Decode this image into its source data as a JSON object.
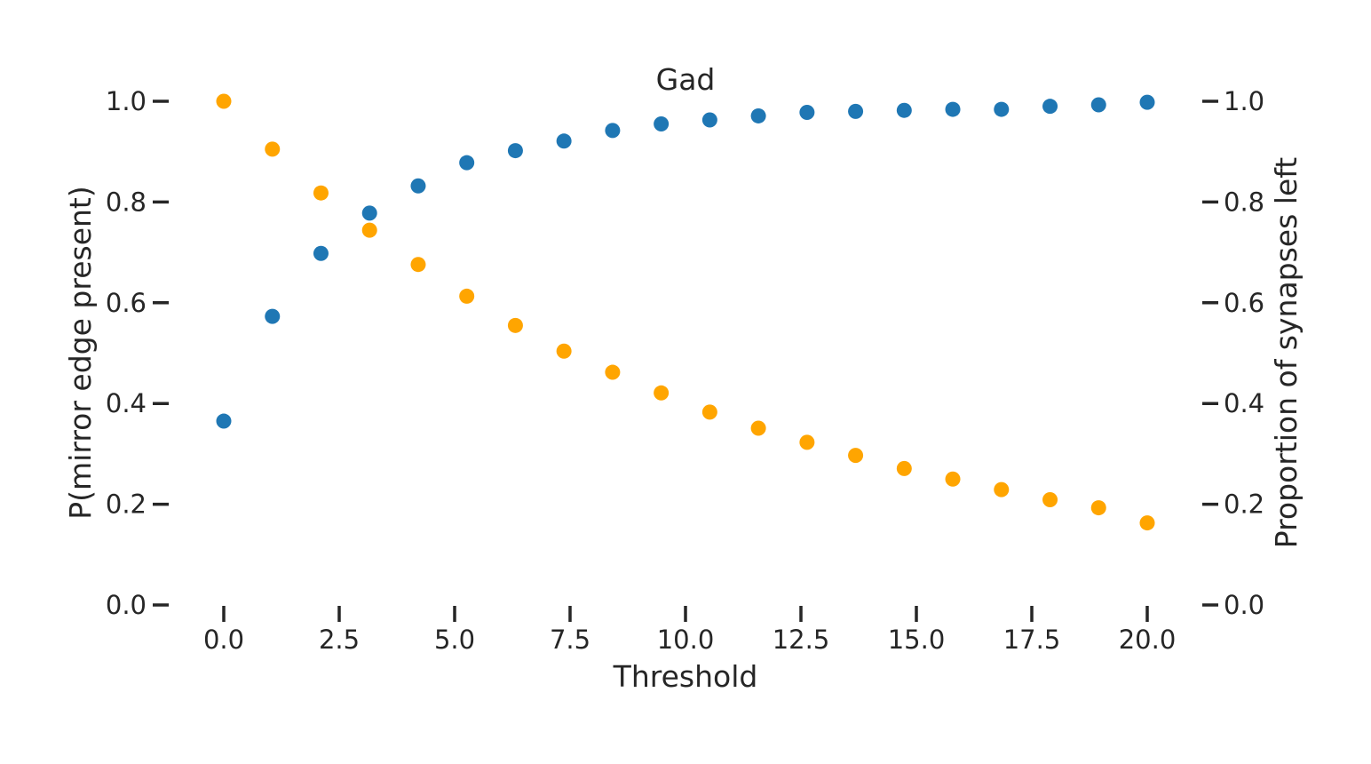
{
  "chart_data": {
    "type": "scatter",
    "title": "Gad",
    "xlabel": "Threshold",
    "ylabel": "P(mirror edge present)",
    "ylabel_right": "Proportion of synapses left",
    "xlim": [
      -1.0,
      21.0
    ],
    "ylim": [
      0.0,
      1.0
    ],
    "ylim_right": [
      0.0,
      1.0
    ],
    "x_ticks": [
      "0.0",
      "2.5",
      "5.0",
      "7.5",
      "10.0",
      "12.5",
      "15.0",
      "17.5",
      "20.0"
    ],
    "y_ticks": [
      "0.0",
      "0.2",
      "0.4",
      "0.6",
      "0.8",
      "1.0"
    ],
    "y_ticks_right": [
      "0.0",
      "0.2",
      "0.4",
      "0.6",
      "0.8",
      "1.0"
    ],
    "grid": false,
    "x": [
      0.0,
      1.053,
      2.105,
      3.158,
      4.211,
      5.263,
      6.316,
      7.368,
      8.421,
      9.474,
      10.526,
      11.579,
      12.632,
      13.684,
      14.737,
      15.789,
      16.842,
      17.895,
      18.947,
      20.0
    ],
    "series": [
      {
        "axis": "left",
        "color": "#1f77b4",
        "values": [
          0.365,
          0.573,
          0.698,
          0.778,
          0.832,
          0.878,
          0.902,
          0.921,
          0.942,
          0.955,
          0.963,
          0.971,
          0.978,
          0.98,
          0.982,
          0.984,
          0.984,
          0.99,
          0.993,
          0.998
        ]
      },
      {
        "axis": "right",
        "color": "#ffa500",
        "values": [
          1.0,
          0.905,
          0.818,
          0.744,
          0.676,
          0.613,
          0.555,
          0.504,
          0.462,
          0.421,
          0.383,
          0.351,
          0.323,
          0.297,
          0.271,
          0.25,
          0.229,
          0.209,
          0.193,
          0.163
        ]
      }
    ]
  }
}
